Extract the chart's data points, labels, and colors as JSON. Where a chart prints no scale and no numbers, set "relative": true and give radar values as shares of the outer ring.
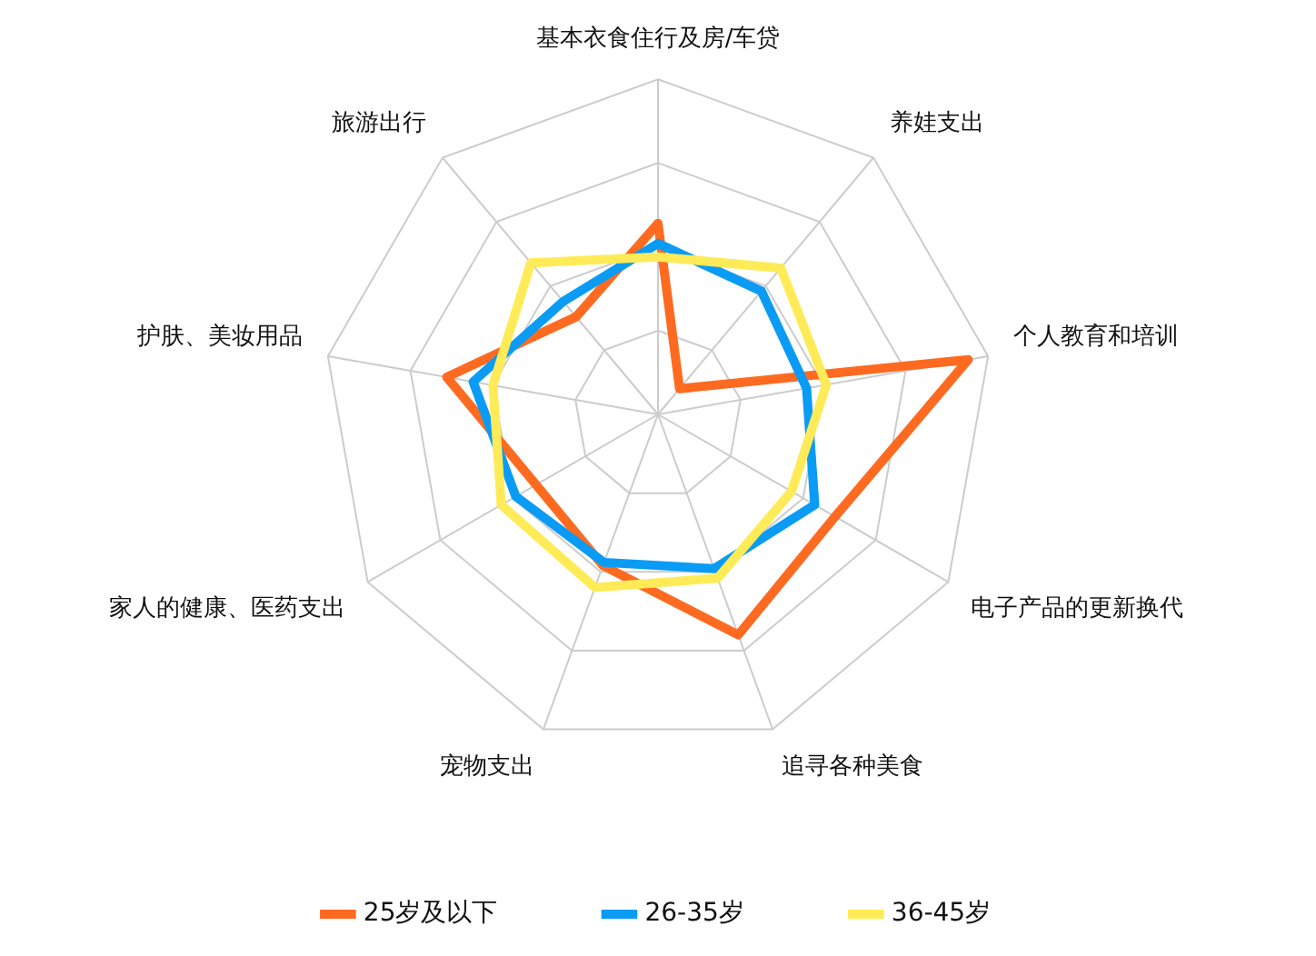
{
  "chart_data": {
    "type": "radar",
    "relative": true,
    "grid": true,
    "legend": "bottom",
    "marker": "none",
    "line_style": "solid",
    "categories": [
      "基本衣食住行及房/车贷",
      "养娃支出",
      "个人教育和培训",
      "电子产品的更新换代",
      "追寻各种美食",
      "宠物支出",
      "家人的健康、医药支出",
      "护肤、美妆用品",
      "旅游出行"
    ],
    "series": [
      {
        "name": "36-45岁",
        "color": "#ffeb57",
        "values": [
          0.47,
          0.57,
          0.51,
          0.46,
          0.52,
          0.55,
          0.54,
          0.5,
          0.59
        ]
      },
      {
        "name": "26-35岁",
        "color": "#0a9bf5",
        "values": [
          0.51,
          0.48,
          0.45,
          0.54,
          0.49,
          0.47,
          0.49,
          0.56,
          0.44
        ]
      },
      {
        "name": "25岁及以下",
        "color": "#ff6a21",
        "values": [
          0.57,
          0.1,
          0.94,
          0.61,
          0.7,
          0.48,
          0.42,
          0.64,
          0.38
        ]
      }
    ]
  }
}
